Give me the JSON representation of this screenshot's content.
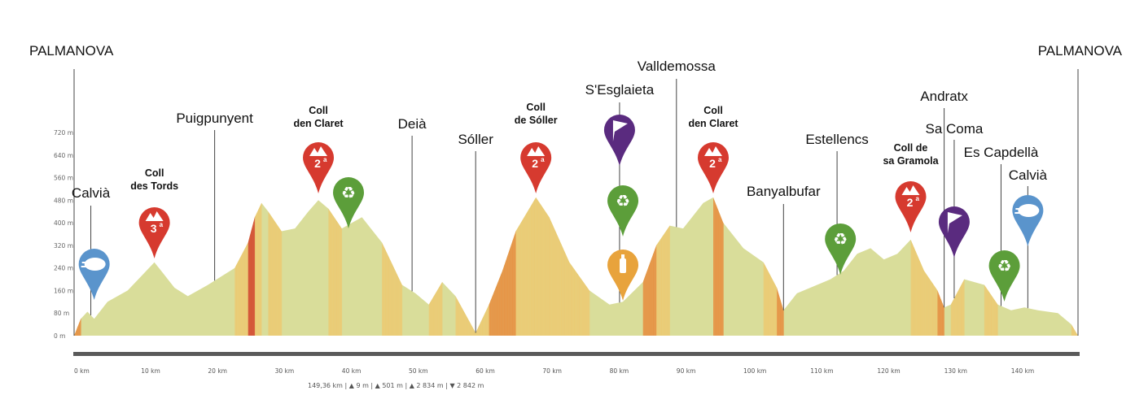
{
  "chart_data": {
    "type": "area",
    "title": "",
    "xlabel": "",
    "ylabel": "",
    "x_unit": "km",
    "y_unit": "m",
    "xlim": [
      0,
      150
    ],
    "ylim": [
      0,
      720
    ],
    "x_ticks": [
      "0 km",
      "10 km",
      "20 km",
      "30 km",
      "40 km",
      "50 km",
      "60 km",
      "70 km",
      "80 km",
      "90 km",
      "100 km",
      "110 km",
      "120 km",
      "130 km",
      "140 km"
    ],
    "y_ticks": [
      "0 m",
      "80 m",
      "160 m",
      "240 m",
      "320 m",
      "400 m",
      "480 m",
      "560 m",
      "640 m",
      "720 m"
    ],
    "x_tick_values": [
      0,
      10,
      20,
      30,
      40,
      50,
      60,
      70,
      80,
      90,
      100,
      110,
      120,
      130,
      140
    ],
    "y_tick_values": [
      0,
      80,
      160,
      240,
      320,
      400,
      480,
      560,
      640,
      720
    ],
    "profile": [
      [
        0,
        0
      ],
      [
        1,
        60
      ],
      [
        2,
        85
      ],
      [
        3,
        60
      ],
      [
        5,
        120
      ],
      [
        8,
        160
      ],
      [
        10,
        210
      ],
      [
        12,
        260
      ],
      [
        13,
        230
      ],
      [
        15,
        170
      ],
      [
        17,
        140
      ],
      [
        20,
        180
      ],
      [
        22,
        210
      ],
      [
        24,
        240
      ],
      [
        26,
        330
      ],
      [
        27,
        420
      ],
      [
        28,
        470
      ],
      [
        29,
        440
      ],
      [
        31,
        370
      ],
      [
        33,
        380
      ],
      [
        35,
        440
      ],
      [
        36.5,
        480
      ],
      [
        38,
        450
      ],
      [
        40,
        380
      ],
      [
        43,
        420
      ],
      [
        46,
        330
      ],
      [
        49,
        180
      ],
      [
        51,
        150
      ],
      [
        53,
        110
      ],
      [
        55,
        190
      ],
      [
        57,
        140
      ],
      [
        60,
        10
      ],
      [
        62,
        110
      ],
      [
        64,
        230
      ],
      [
        66,
        370
      ],
      [
        68,
        450
      ],
      [
        69,
        490
      ],
      [
        71,
        420
      ],
      [
        74,
        260
      ],
      [
        77,
        160
      ],
      [
        80,
        110
      ],
      [
        82,
        120
      ],
      [
        85,
        190
      ],
      [
        87,
        320
      ],
      [
        89,
        390
      ],
      [
        91,
        380
      ],
      [
        94,
        470
      ],
      [
        95.5,
        490
      ],
      [
        97,
        400
      ],
      [
        100,
        310
      ],
      [
        103,
        260
      ],
      [
        105,
        170
      ],
      [
        106,
        90
      ],
      [
        108,
        150
      ],
      [
        110,
        170
      ],
      [
        113,
        200
      ],
      [
        115,
        230
      ],
      [
        117,
        290
      ],
      [
        119,
        310
      ],
      [
        121,
        270
      ],
      [
        123,
        290
      ],
      [
        125,
        340
      ],
      [
        127,
        230
      ],
      [
        129,
        160
      ],
      [
        130,
        100
      ],
      [
        131,
        110
      ],
      [
        133,
        200
      ],
      [
        136,
        180
      ],
      [
        138,
        110
      ],
      [
        140,
        90
      ],
      [
        142,
        100
      ],
      [
        144,
        90
      ],
      [
        147,
        80
      ],
      [
        149,
        40
      ],
      [
        150,
        0
      ]
    ],
    "towns": [
      {
        "name": "PALMANOVA",
        "km": 0
      },
      {
        "name": "Calvià",
        "km": 2.5
      },
      {
        "name": "Puigpunyent",
        "km": 21
      },
      {
        "name": "Deià",
        "km": 50.5
      },
      {
        "name": "Sóller",
        "km": 60
      },
      {
        "name": "S'Esglaieta",
        "km": 81.5
      },
      {
        "name": "Valldemossa",
        "km": 90
      },
      {
        "name": "Banyalbufar",
        "km": 106
      },
      {
        "name": "Estellencs",
        "km": 114
      },
      {
        "name": "Andratx",
        "km": 130
      },
      {
        "name": "Sa Coma",
        "km": 131.5
      },
      {
        "name": "Es Capdellà",
        "km": 138.5
      },
      {
        "name": "Calvià",
        "km": 142.5
      },
      {
        "name": "PALMANOVA",
        "km": 150
      }
    ],
    "climbs": [
      {
        "name_line1": "Coll",
        "name_line2": "des Tords",
        "category": "3",
        "sup": "a",
        "km": 12
      },
      {
        "name_line1": "Coll",
        "name_line2": "den Claret",
        "category": "2",
        "sup": "a",
        "km": 36.5
      },
      {
        "name_line1": "Coll",
        "name_line2": "de Sóller",
        "category": "2",
        "sup": "a",
        "km": 69
      },
      {
        "name_line1": "Coll",
        "name_line2": "den Claret",
        "category": "2",
        "sup": "a",
        "km": 95.5
      },
      {
        "name_line1": "Coll de",
        "name_line2": "sa Gramola",
        "category": "2",
        "sup": "a",
        "km": 125
      }
    ],
    "markers": [
      {
        "icon": "recycle-icon",
        "km": 41,
        "color": "#5c9e3a"
      },
      {
        "icon": "recycle-icon",
        "km": 82,
        "color": "#5c9e3a"
      },
      {
        "icon": "recycle-icon",
        "km": 114.5,
        "color": "#5c9e3a"
      },
      {
        "icon": "recycle-icon",
        "km": 139,
        "color": "#5c9e3a"
      },
      {
        "icon": "bottle-icon",
        "km": 82,
        "color": "#e8a33c"
      },
      {
        "icon": "flag-icon",
        "km": 81.5,
        "color": "#5a2b7f"
      },
      {
        "icon": "flag-icon",
        "km": 131.5,
        "color": "#5a2b7f"
      },
      {
        "icon": "sprint-icon",
        "km": 3,
        "color": "#5a94cc"
      },
      {
        "icon": "sprint-icon",
        "km": 142.5,
        "color": "#5a94cc"
      }
    ],
    "stats": "149,36 km | ▲ 9 m | ▲ 501 m | ▲ 2 834 m | ▼ 2 842 m",
    "colors": {
      "climb_marker": "#d63a2f",
      "recycle": "#5c9e3a",
      "flag": "#5a2b7f",
      "bottle": "#e8a33c",
      "sprint": "#5a94cc",
      "profile_light": "#d9dd9a",
      "stripe_orange": "#e78a3a",
      "stripe_red": "#d3442c"
    }
  }
}
